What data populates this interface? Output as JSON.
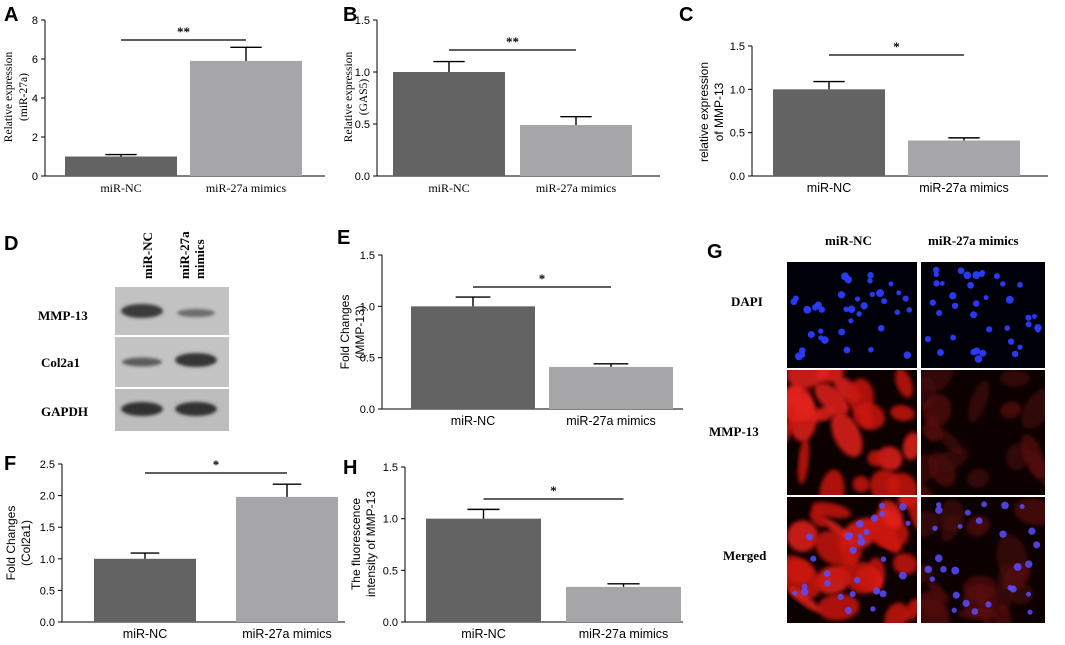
{
  "chart_data": [
    {
      "panel": "A",
      "type": "bar",
      "categories": [
        "miR-NC",
        "miR-27a mimics"
      ],
      "values": [
        1.0,
        5.9
      ],
      "errors": [
        0.1,
        0.7
      ],
      "ylabel": [
        "Relative expression",
        "(miR-27a)"
      ],
      "ylim": [
        0,
        8
      ],
      "yticks": [
        "0",
        "2",
        "4",
        "6",
        "8"
      ],
      "significance": "**"
    },
    {
      "panel": "B",
      "type": "bar",
      "categories": [
        "miR-NC",
        "miR-27a mimics"
      ],
      "values": [
        1.0,
        0.49
      ],
      "errors": [
        0.1,
        0.08
      ],
      "ylabel": [
        "Relative expression",
        "(GAS5)"
      ],
      "ylim": [
        0,
        1.5
      ],
      "yticks": [
        "0.0",
        "0.5",
        "1.0",
        "1.5"
      ],
      "significance": "**"
    },
    {
      "panel": "C",
      "type": "bar",
      "categories": [
        "miR-NC",
        "miR-27a mimics"
      ],
      "values": [
        1.0,
        0.41
      ],
      "errors": [
        0.09,
        0.03
      ],
      "ylabel": [
        "relative expression",
        "of MMP-13"
      ],
      "ylim": [
        0,
        1.5
      ],
      "yticks": [
        "0.0",
        "0.5",
        "1.0",
        "1.5"
      ],
      "significance": "*"
    },
    {
      "panel": "E",
      "type": "bar",
      "categories": [
        "miR-NC",
        "miR-27a mimics"
      ],
      "values": [
        1.0,
        0.41
      ],
      "errors": [
        0.09,
        0.03
      ],
      "ylabel": [
        "Fold Changes",
        "(MMP-13)"
      ],
      "ylim": [
        0,
        1.5
      ],
      "yticks": [
        "0.0",
        "0.5",
        "1.0",
        "1.5"
      ],
      "significance": "*"
    },
    {
      "panel": "F",
      "type": "bar",
      "categories": [
        "miR-NC",
        "miR-27a mimics"
      ],
      "values": [
        1.0,
        1.98
      ],
      "errors": [
        0.09,
        0.2
      ],
      "ylabel": [
        "Fold Changes",
        "(Col2a1)"
      ],
      "ylim": [
        0,
        2.5
      ],
      "yticks": [
        "0.0",
        "0.5",
        "1.0",
        "1.5",
        "2.0",
        "2.5"
      ],
      "significance": "*"
    },
    {
      "panel": "H",
      "type": "bar",
      "categories": [
        "miR-NC",
        "miR-27a mimics"
      ],
      "values": [
        1.0,
        0.34
      ],
      "errors": [
        0.09,
        0.03
      ],
      "ylabel": [
        "The fluorescence",
        "intensity of MMP-13"
      ],
      "ylim": [
        0,
        1.5
      ],
      "yticks": [
        "0.0",
        "0.5",
        "1.0",
        "1.5"
      ],
      "significance": "*"
    }
  ],
  "colors": {
    "nc_bar": "#636363",
    "mimic_bar": "#a6a6a8"
  },
  "blot": {
    "panel": "D",
    "columns": [
      "miR-NC",
      "miR-27a mimics"
    ],
    "rows": [
      "MMP-13",
      "Col2a1",
      "GAPDH"
    ]
  },
  "fluorescence": {
    "panel": "G",
    "columns": [
      "miR-NC",
      "miR-27a mimics"
    ],
    "rows": [
      "DAPI",
      "MMP-13",
      "Merged"
    ]
  }
}
